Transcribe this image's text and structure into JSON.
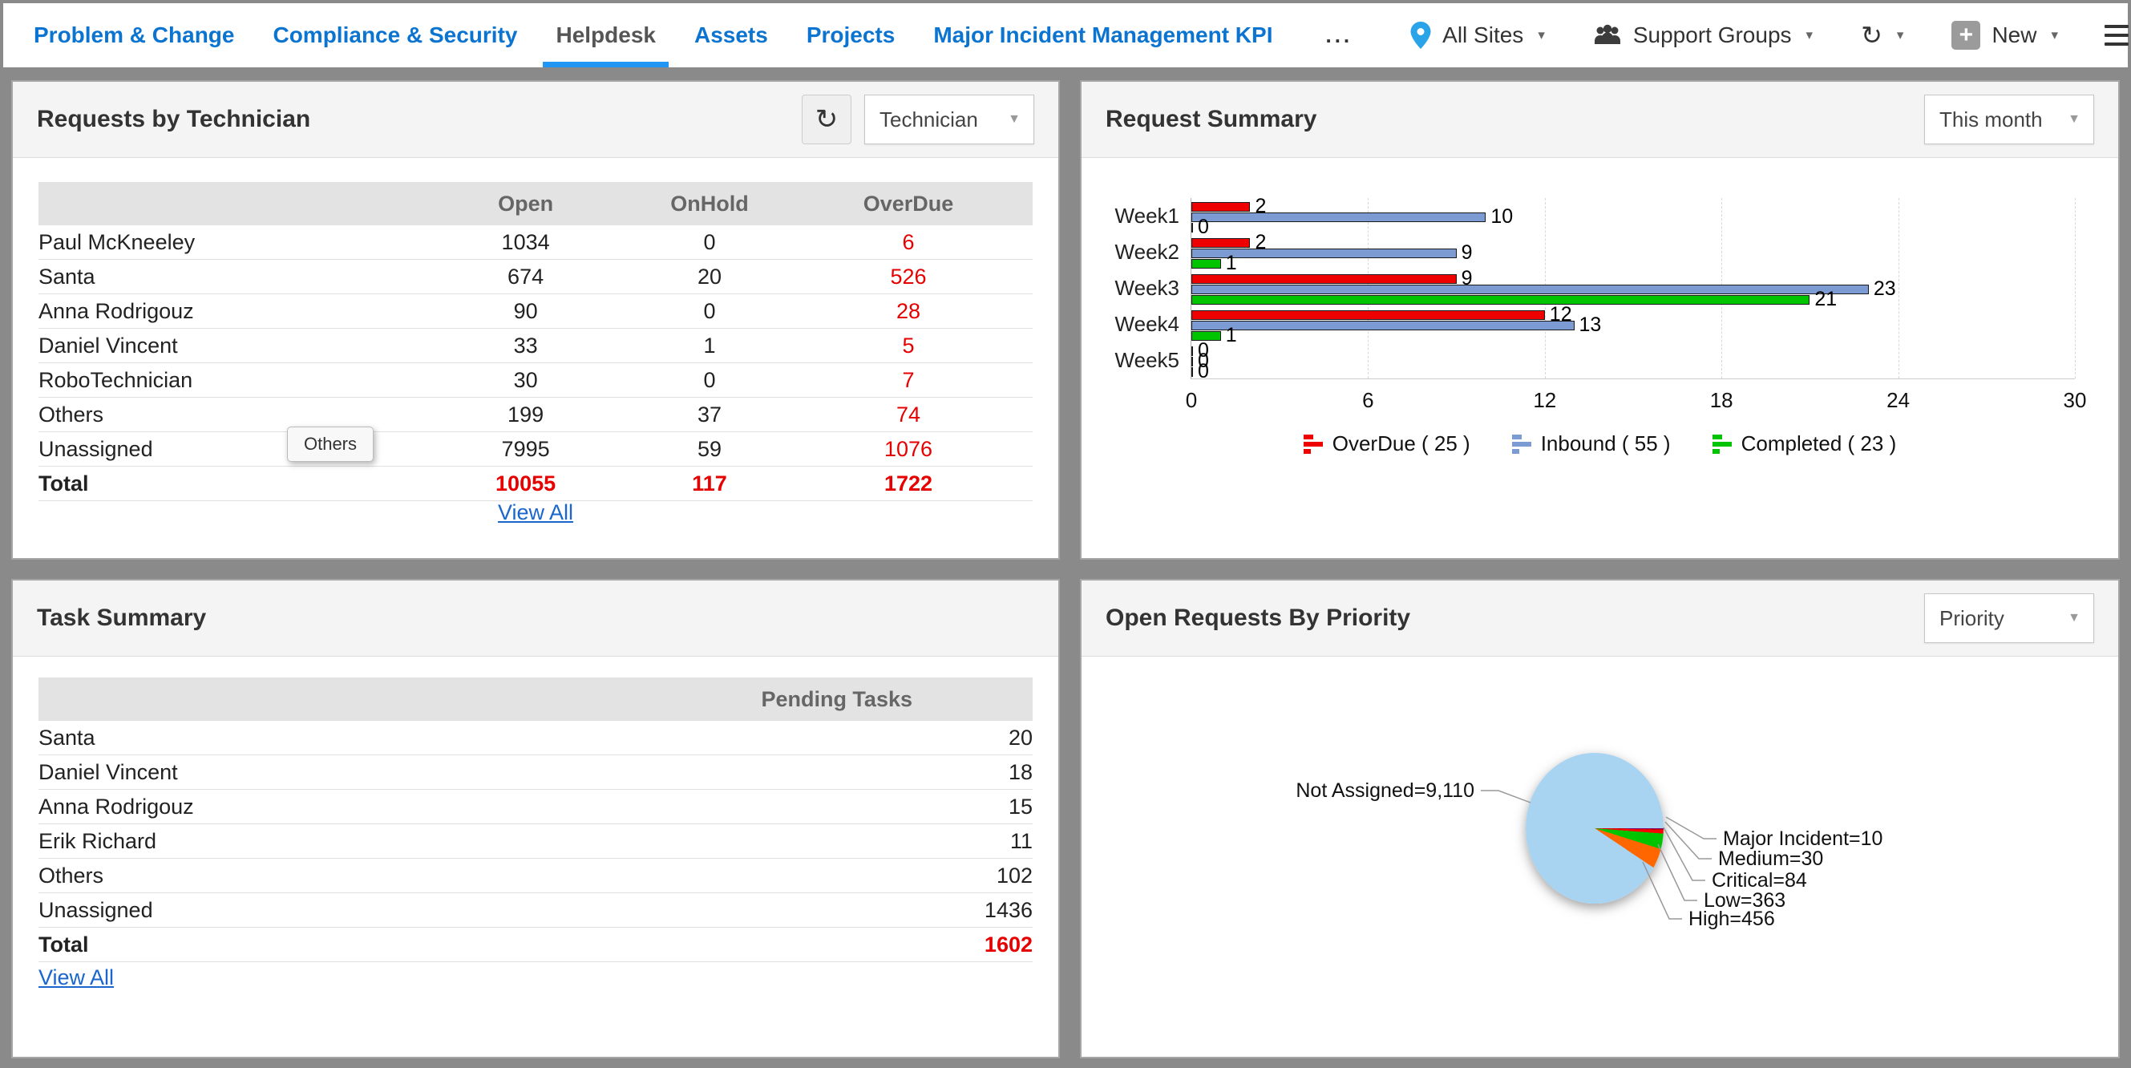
{
  "nav": {
    "tabs": [
      {
        "label": "Problem & Change",
        "active": false
      },
      {
        "label": "Compliance & Security",
        "active": false
      },
      {
        "label": "Helpdesk",
        "active": true
      },
      {
        "label": "Assets",
        "active": false
      },
      {
        "label": "Projects",
        "active": false
      },
      {
        "label": "Major Incident Management KPI",
        "active": false
      }
    ],
    "sites_label": "All Sites",
    "groups_label": "Support Groups",
    "new_label": "New"
  },
  "icons": {
    "more": "...",
    "caret": "▾",
    "select_caret": "▼",
    "refresh": "↻",
    "plus": "+"
  },
  "panels": {
    "requests_by_technician": {
      "title": "Requests by Technician",
      "filter_value": "Technician",
      "columns": [
        "Open",
        "OnHold",
        "OverDue"
      ],
      "rows": [
        {
          "name": "Paul McKneeley",
          "open": "1034",
          "onhold": "0",
          "overdue": "6"
        },
        {
          "name": "Santa",
          "open": "674",
          "onhold": "20",
          "overdue": "526"
        },
        {
          "name": "Anna Rodrigouz",
          "open": "90",
          "onhold": "0",
          "overdue": "28"
        },
        {
          "name": "Daniel Vincent",
          "open": "33",
          "onhold": "1",
          "overdue": "5"
        },
        {
          "name": "RoboTechnician",
          "open": "30",
          "onhold": "0",
          "overdue": "7"
        },
        {
          "name": "Others",
          "open": "199",
          "onhold": "37",
          "overdue": "74"
        },
        {
          "name": "Unassigned",
          "open": "7995",
          "onhold": "59",
          "overdue": "1076"
        }
      ],
      "total": {
        "name": "Total",
        "open": "10055",
        "onhold": "117",
        "overdue": "1722"
      },
      "view_all": "View All",
      "tooltip": "Others"
    },
    "request_summary": {
      "title": "Request Summary",
      "filter_value": "This month"
    },
    "task_summary": {
      "title": "Task Summary",
      "column": "Pending Tasks",
      "rows": [
        {
          "name": "Santa",
          "value": "20"
        },
        {
          "name": "Daniel Vincent",
          "value": "18"
        },
        {
          "name": "Anna Rodrigouz",
          "value": "15"
        },
        {
          "name": "Erik Richard",
          "value": "11"
        },
        {
          "name": "Others",
          "value": "102"
        },
        {
          "name": "Unassigned",
          "value": "1436"
        }
      ],
      "total": {
        "name": "Total",
        "value": "1602"
      },
      "view_all": "View All"
    },
    "open_requests_by_priority": {
      "title": "Open Requests By Priority",
      "filter_value": "Priority"
    }
  },
  "chart_data": [
    {
      "type": "bar",
      "orientation": "horizontal",
      "title": "Request Summary",
      "categories": [
        "Week1",
        "Week2",
        "Week3",
        "Week4",
        "Week5"
      ],
      "series": [
        {
          "name": "OverDue",
          "total": 25,
          "color": "#ee0000",
          "values": [
            2,
            2,
            9,
            12,
            0
          ]
        },
        {
          "name": "Inbound",
          "total": 55,
          "color": "#7b9bd2",
          "values": [
            10,
            9,
            23,
            13,
            0
          ]
        },
        {
          "name": "Completed",
          "total": 23,
          "color": "#00c400",
          "values": [
            0,
            1,
            21,
            1,
            0
          ]
        }
      ],
      "legend": [
        {
          "label": "OverDue ( 25 )"
        },
        {
          "label": "Inbound ( 55 )"
        },
        {
          "label": "Completed ( 23 )"
        }
      ],
      "xlabel": "",
      "ylabel": "",
      "xlim": [
        0,
        30
      ],
      "x_ticks": [
        0,
        6,
        12,
        18,
        24,
        30
      ],
      "grid": "vertical-dashed",
      "legend_position": "bottom"
    },
    {
      "type": "pie",
      "title": "Open Requests By Priority",
      "start_angle_deg": 90,
      "slices": [
        {
          "name": "Major Incident",
          "value": 10,
          "label": "Major Incident=10",
          "color": "#4400cc"
        },
        {
          "name": "Medium",
          "value": 30,
          "label": "Medium=30",
          "color": "#c00000"
        },
        {
          "name": "Critical",
          "value": 84,
          "label": "Critical=84",
          "color": "#ff0000"
        },
        {
          "name": "Low",
          "value": 363,
          "label": "Low=363",
          "color": "#00c400"
        },
        {
          "name": "High",
          "value": 456,
          "label": "High=456",
          "color": "#ff6600"
        },
        {
          "name": "Not Assigned",
          "value": 9110,
          "label": "Not Assigned=9,110",
          "color": "#a8d4f2"
        }
      ]
    }
  ],
  "colors": {
    "nav_link": "#0b74d1",
    "active_tab_underline": "#2196f3",
    "alert_red": "#e60000",
    "link_blue": "#1a66cc",
    "page_background": "#8a8a8a"
  }
}
